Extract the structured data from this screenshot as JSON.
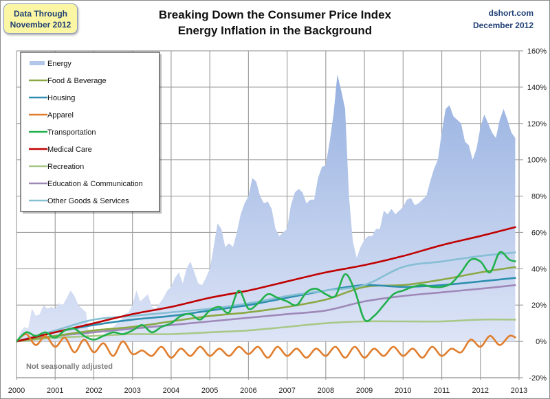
{
  "header": {
    "badge_line1": "Data Through",
    "badge_line2": "November 2012",
    "title_line1": "Breaking Down the Consumer Price Index",
    "title_line2": "Energy Inflation in the Background",
    "source_line1": "dshort.com",
    "source_line2": "December 2012"
  },
  "note": "Not seasonally adjusted",
  "chart_data": {
    "type": "line",
    "title": "Breaking Down the Consumer Price Index — Energy Inflation in the Background",
    "xlabel": "",
    "ylabel": "",
    "x_ticks": [
      "2000",
      "2001",
      "2002",
      "2003",
      "2004",
      "2005",
      "2006",
      "2007",
      "2008",
      "2009",
      "2010",
      "2011",
      "2012",
      "2013"
    ],
    "y_ticks": [
      "160%",
      "140%",
      "120%",
      "100%",
      "80%",
      "60%",
      "40%",
      "20%",
      "0%",
      "-20%"
    ],
    "xlim": [
      2000,
      2013
    ],
    "ylim": [
      -20,
      160
    ],
    "y_axis_side": "right",
    "grid": true,
    "legend_position": "top-left",
    "series": [
      {
        "name": "Energy",
        "style": "area",
        "color": "#a9bfe6",
        "x": [
          2000,
          2000.1,
          2000.2,
          2000.3,
          2000.4,
          2000.5,
          2000.6,
          2000.7,
          2000.8,
          2000.9,
          2001.0,
          2001.1,
          2001.2,
          2001.3,
          2001.4,
          2001.5,
          2001.6,
          2001.7,
          2001.8,
          2001.9,
          2002.0,
          2002.1,
          2002.2,
          2002.3,
          2002.4,
          2002.5,
          2002.6,
          2002.7,
          2002.8,
          2002.9,
          2003.0,
          2003.1,
          2003.2,
          2003.3,
          2003.4,
          2003.5,
          2003.6,
          2003.7,
          2003.8,
          2003.9,
          2004.0,
          2004.1,
          2004.2,
          2004.3,
          2004.4,
          2004.5,
          2004.6,
          2004.7,
          2004.8,
          2004.9,
          2005.0,
          2005.1,
          2005.2,
          2005.3,
          2005.4,
          2005.5,
          2005.6,
          2005.7,
          2005.8,
          2005.9,
          2006.0,
          2006.1,
          2006.2,
          2006.3,
          2006.4,
          2006.5,
          2006.6,
          2006.7,
          2006.8,
          2006.9,
          2007.0,
          2007.1,
          2007.2,
          2007.3,
          2007.4,
          2007.5,
          2007.6,
          2007.7,
          2007.8,
          2007.9,
          2008.0,
          2008.1,
          2008.2,
          2008.3,
          2008.4,
          2008.5,
          2008.6,
          2008.7,
          2008.8,
          2008.9,
          2009.0,
          2009.1,
          2009.2,
          2009.3,
          2009.4,
          2009.5,
          2009.6,
          2009.7,
          2009.8,
          2009.9,
          2010.0,
          2010.1,
          2010.2,
          2010.3,
          2010.4,
          2010.5,
          2010.6,
          2010.7,
          2010.8,
          2010.9,
          2011.0,
          2011.1,
          2011.2,
          2011.3,
          2011.4,
          2011.5,
          2011.6,
          2011.7,
          2011.8,
          2011.9,
          2012.0,
          2012.1,
          2012.2,
          2012.3,
          2012.4,
          2012.5,
          2012.6,
          2012.7,
          2012.8,
          2012.9
        ],
        "values": [
          0,
          5,
          8,
          7,
          18,
          14,
          15,
          20,
          18,
          19,
          18,
          21,
          20,
          24,
          28,
          25,
          20,
          18,
          16,
          0,
          0,
          2,
          3,
          5,
          6,
          8,
          10,
          12,
          15,
          16,
          20,
          28,
          22,
          24,
          26,
          19,
          18,
          21,
          24,
          28,
          30,
          35,
          38,
          32,
          40,
          44,
          38,
          32,
          31,
          35,
          40,
          52,
          65,
          62,
          52,
          54,
          52,
          60,
          70,
          76,
          80,
          90,
          88,
          80,
          76,
          77,
          73,
          62,
          58,
          60,
          62,
          75,
          82,
          84,
          82,
          76,
          78,
          78,
          90,
          96,
          97,
          110,
          125,
          147,
          138,
          128,
          80,
          55,
          46,
          52,
          56,
          58,
          58,
          62,
          62,
          72,
          70,
          73,
          70,
          72,
          74,
          78,
          79,
          75,
          76,
          78,
          80,
          88,
          95,
          100,
          115,
          128,
          130,
          124,
          122,
          120,
          110,
          108,
          100,
          106,
          118,
          125,
          120,
          115,
          112,
          122,
          128,
          122,
          115,
          112
        ]
      },
      {
        "name": "Food & Beverage",
        "style": "line",
        "color": "#8aa844",
        "x": [
          2000,
          2001,
          2002,
          2003,
          2004,
          2005,
          2006,
          2007,
          2008,
          2009,
          2010,
          2011,
          2012,
          2012.92
        ],
        "values": [
          0,
          3,
          6,
          8,
          11,
          14,
          16,
          19,
          23,
          30,
          31,
          34,
          38,
          41
        ]
      },
      {
        "name": "Housing",
        "style": "line",
        "color": "#2e8eb0",
        "x": [
          2000,
          2001,
          2002,
          2003,
          2004,
          2005,
          2006,
          2007,
          2008,
          2009,
          2010,
          2011,
          2012,
          2012.92
        ],
        "values": [
          0,
          5,
          9,
          12,
          14,
          17,
          20,
          24,
          28,
          31,
          30,
          31,
          33,
          35
        ]
      },
      {
        "name": "Apparel",
        "style": "line",
        "color": "#e07e2e",
        "x": [
          2000,
          2000.25,
          2000.5,
          2000.75,
          2001,
          2001.25,
          2001.5,
          2001.75,
          2002,
          2002.25,
          2002.5,
          2002.75,
          2003,
          2003.25,
          2003.5,
          2003.75,
          2004,
          2004.25,
          2004.5,
          2004.75,
          2005,
          2005.25,
          2005.5,
          2005.75,
          2006,
          2006.25,
          2006.5,
          2006.75,
          2007,
          2007.25,
          2007.5,
          2007.75,
          2008,
          2008.25,
          2008.5,
          2008.75,
          2009,
          2009.25,
          2009.5,
          2009.75,
          2010,
          2010.25,
          2010.5,
          2010.75,
          2011,
          2011.25,
          2011.5,
          2011.75,
          2012,
          2012.25,
          2012.5,
          2012.75,
          2012.92
        ],
        "values": [
          0,
          4,
          -2,
          3,
          -3,
          2,
          -6,
          1,
          -6,
          -1,
          -8,
          0,
          -7,
          -5,
          -8,
          -3,
          -9,
          -4,
          -8,
          -3,
          -8,
          -4,
          -8,
          -3,
          -7,
          -3,
          -9,
          -3,
          -8,
          -4,
          -9,
          -4,
          -8,
          -3,
          -9,
          -3,
          -9,
          -4,
          -8,
          -3,
          -8,
          -4,
          -9,
          -3,
          -8,
          -4,
          -6,
          1,
          -3,
          3,
          -2,
          3,
          2
        ]
      },
      {
        "name": "Transportation",
        "style": "line",
        "color": "#21b04b",
        "x": [
          2000,
          2000.25,
          2000.5,
          2000.75,
          2001,
          2001.25,
          2001.5,
          2001.75,
          2002,
          2002.25,
          2002.5,
          2002.75,
          2003,
          2003.25,
          2003.5,
          2003.75,
          2004,
          2004.25,
          2004.5,
          2004.75,
          2005,
          2005.25,
          2005.5,
          2005.75,
          2006,
          2006.25,
          2006.5,
          2006.75,
          2007,
          2007.25,
          2007.5,
          2007.75,
          2008,
          2008.25,
          2008.5,
          2008.75,
          2009,
          2009.25,
          2009.5,
          2009.75,
          2010,
          2010.25,
          2010.5,
          2010.75,
          2011,
          2011.25,
          2011.5,
          2011.75,
          2012,
          2012.25,
          2012.5,
          2012.75,
          2012.92
        ],
        "values": [
          0,
          5,
          3,
          5,
          2,
          6,
          7,
          3,
          1,
          3,
          5,
          4,
          6,
          9,
          5,
          8,
          10,
          14,
          15,
          12,
          17,
          19,
          16,
          28,
          18,
          21,
          26,
          24,
          22,
          20,
          27,
          29,
          26,
          25,
          37,
          28,
          12,
          14,
          20,
          26,
          28,
          30,
          31,
          30,
          30,
          32,
          38,
          45,
          44,
          38,
          49,
          45,
          44
        ]
      },
      {
        "name": "Medical Care",
        "style": "line",
        "color": "#c00000",
        "x": [
          2000,
          2001,
          2002,
          2003,
          2004,
          2005,
          2006,
          2007,
          2008,
          2009,
          2010,
          2011,
          2012,
          2012.92
        ],
        "values": [
          0,
          5,
          10,
          15,
          19,
          24,
          28,
          33,
          38,
          42,
          47,
          53,
          58,
          63
        ]
      },
      {
        "name": "Recreation",
        "style": "line",
        "color": "#a8c888",
        "x": [
          2000,
          2001,
          2002,
          2003,
          2004,
          2005,
          2006,
          2007,
          2008,
          2009,
          2010,
          2011,
          2012,
          2012.92
        ],
        "values": [
          0,
          2,
          3,
          4,
          4,
          5,
          6,
          8,
          10,
          11,
          11,
          11,
          12,
          12
        ]
      },
      {
        "name": "Education & Communication",
        "style": "line",
        "color": "#9e88b8",
        "x": [
          2000,
          2001,
          2002,
          2003,
          2004,
          2005,
          2006,
          2007,
          2008,
          2009,
          2010,
          2011,
          2012,
          2012.92
        ],
        "values": [
          0,
          3,
          5,
          7,
          9,
          11,
          13,
          15,
          17,
          22,
          25,
          27,
          29,
          31
        ]
      },
      {
        "name": "Other Goods & Services",
        "style": "line",
        "color": "#86bfd4",
        "x": [
          2000,
          2001,
          2002,
          2003,
          2004,
          2005,
          2006,
          2007,
          2008,
          2009,
          2010,
          2011,
          2012,
          2012.92
        ],
        "values": [
          0,
          6,
          12,
          14,
          16,
          18,
          21,
          25,
          28,
          31,
          41,
          44,
          47,
          49
        ]
      }
    ]
  }
}
